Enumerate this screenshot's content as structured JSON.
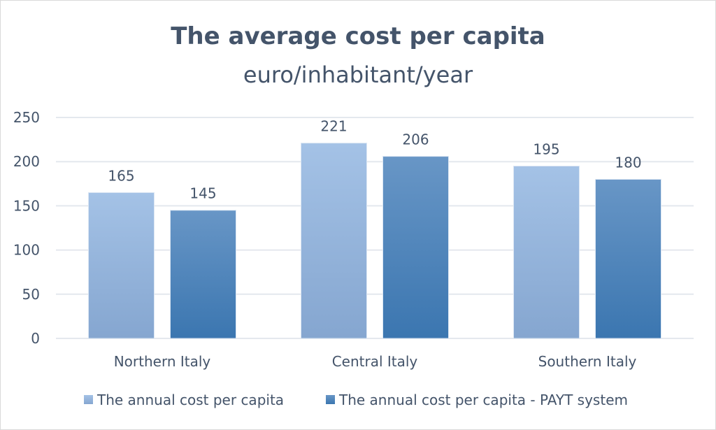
{
  "chart_data": {
    "type": "bar",
    "title": "The average cost per capita",
    "subtitle": "euro/inhabitant/year",
    "categories": [
      "Northern Italy",
      "Central Italy",
      "Southern Italy"
    ],
    "series": [
      {
        "name": "The annual cost per capita",
        "values": [
          165,
          221,
          195
        ],
        "color_top": "#a4c2e6",
        "color_bottom": "#85a6d0"
      },
      {
        "name": "The annual cost per capita - PAYT system",
        "values": [
          145,
          206,
          180
        ],
        "color_top": "#6896c6",
        "color_bottom": "#3b76b0"
      }
    ],
    "ylim": [
      0,
      250
    ],
    "yticks": [
      0,
      50,
      100,
      150,
      200,
      250
    ],
    "grid": true,
    "legend": "bottom",
    "xlabel": "",
    "ylabel": ""
  }
}
